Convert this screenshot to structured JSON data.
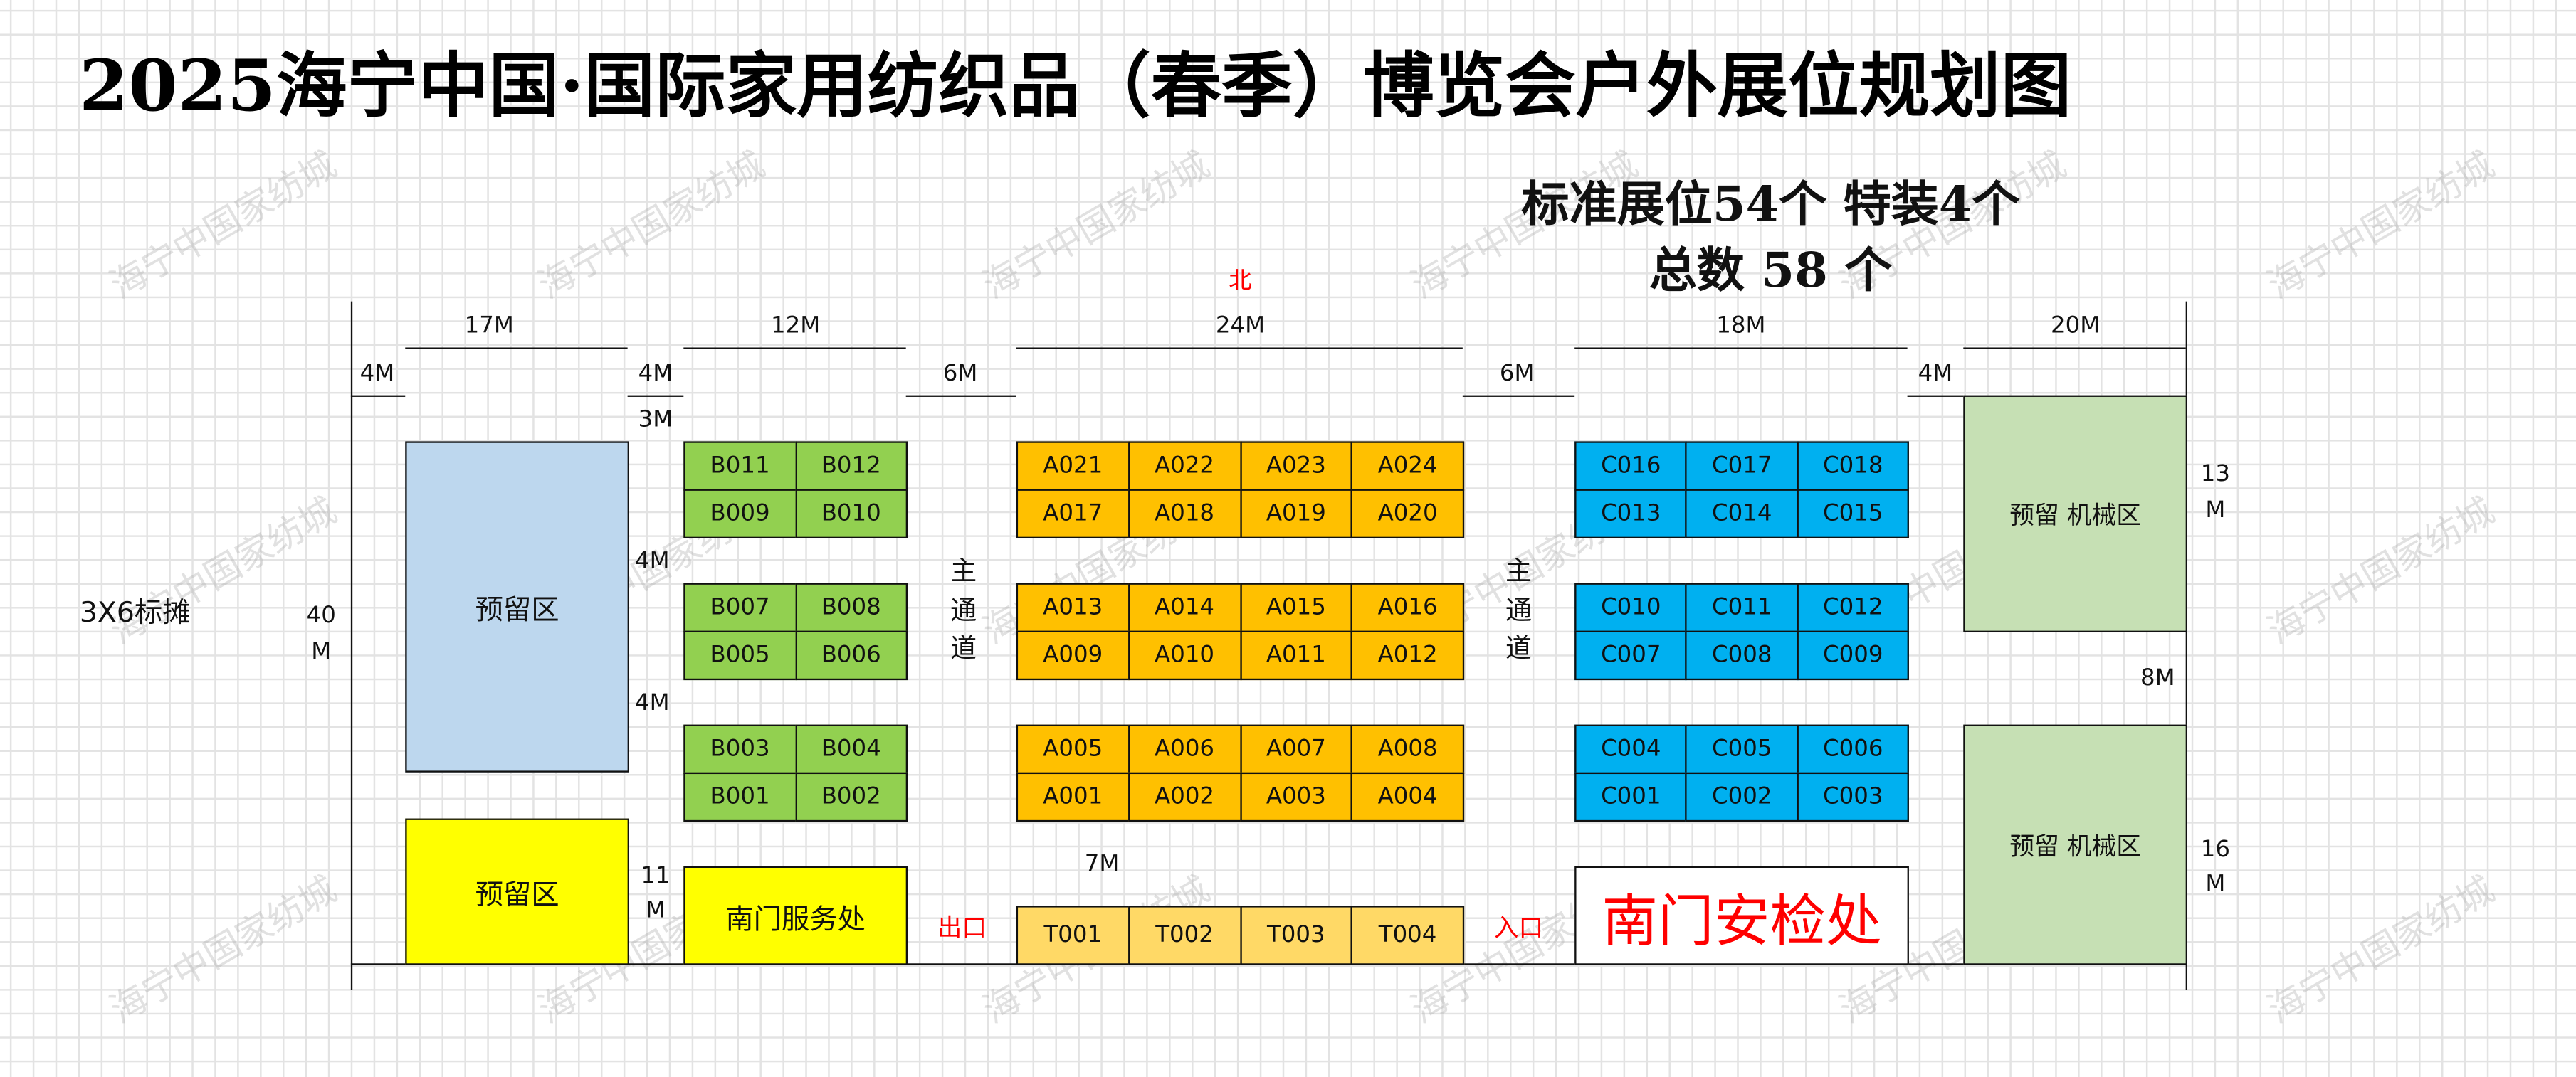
{
  "title": "2025海宁中国·国际家用纺织品（春季）博览会户外展位规划图",
  "summary": {
    "line1": "标准展位54个 特装4个",
    "line2": "总数 58 个"
  },
  "watermark": "海宁中国家纺城",
  "north": "北",
  "dimensions": {
    "w17": "17M",
    "w12": "12M",
    "w24": "24M",
    "w18": "18M",
    "w20": "20M",
    "g4a": "4M",
    "g4b": "4M",
    "g6a": "6M",
    "g6b": "6M",
    "g4c": "4M",
    "g3": "3M",
    "g4d": "4M",
    "g4e": "4M",
    "h40a": "40",
    "h40b": "M",
    "h11a": "11",
    "h11b": "M",
    "h13a": "13",
    "h13b": "M",
    "h8": "8M",
    "h16a": "16",
    "h16b": "M",
    "g7": "7M"
  },
  "legend_text": "3X6标摊",
  "aisle": [
    "主",
    "通",
    "道"
  ],
  "exit": "出口",
  "entrance": "入口",
  "areas": {
    "reserve_blue": "预留区",
    "reserve_yellow": "预留区",
    "service": "南门服务处",
    "security": "南门安检处",
    "machinery_top": "预留 机械区",
    "machinery_bottom": "预留 机械区"
  },
  "colors": {
    "b_zone": "#92D050",
    "a_zone": "#FFC000",
    "c_zone": "#00B0F0",
    "t_zone": "#FFD966",
    "reserve_blue": "#BDD7EE",
    "reserve_yellow": "#FFFF00",
    "machinery": "#C6E0B4",
    "red_text": "#FF0000"
  },
  "booths": {
    "B": [
      [
        "B011",
        "B012"
      ],
      [
        "B009",
        "B010"
      ],
      [
        "B007",
        "B008"
      ],
      [
        "B005",
        "B006"
      ],
      [
        "B003",
        "B004"
      ],
      [
        "B001",
        "B002"
      ]
    ],
    "A": [
      [
        "A021",
        "A022",
        "A023",
        "A024"
      ],
      [
        "A017",
        "A018",
        "A019",
        "A020"
      ],
      [
        "A013",
        "A014",
        "A015",
        "A016"
      ],
      [
        "A009",
        "A010",
        "A011",
        "A012"
      ],
      [
        "A005",
        "A006",
        "A007",
        "A008"
      ],
      [
        "A001",
        "A002",
        "A003",
        "A004"
      ]
    ],
    "C": [
      [
        "C016",
        "C017",
        "C018"
      ],
      [
        "C013",
        "C014",
        "C015"
      ],
      [
        "C010",
        "C011",
        "C012"
      ],
      [
        "C007",
        "C008",
        "C009"
      ],
      [
        "C004",
        "C005",
        "C006"
      ],
      [
        "C001",
        "C002",
        "C003"
      ]
    ],
    "T": [
      "T001",
      "T002",
      "T003",
      "T004"
    ]
  }
}
